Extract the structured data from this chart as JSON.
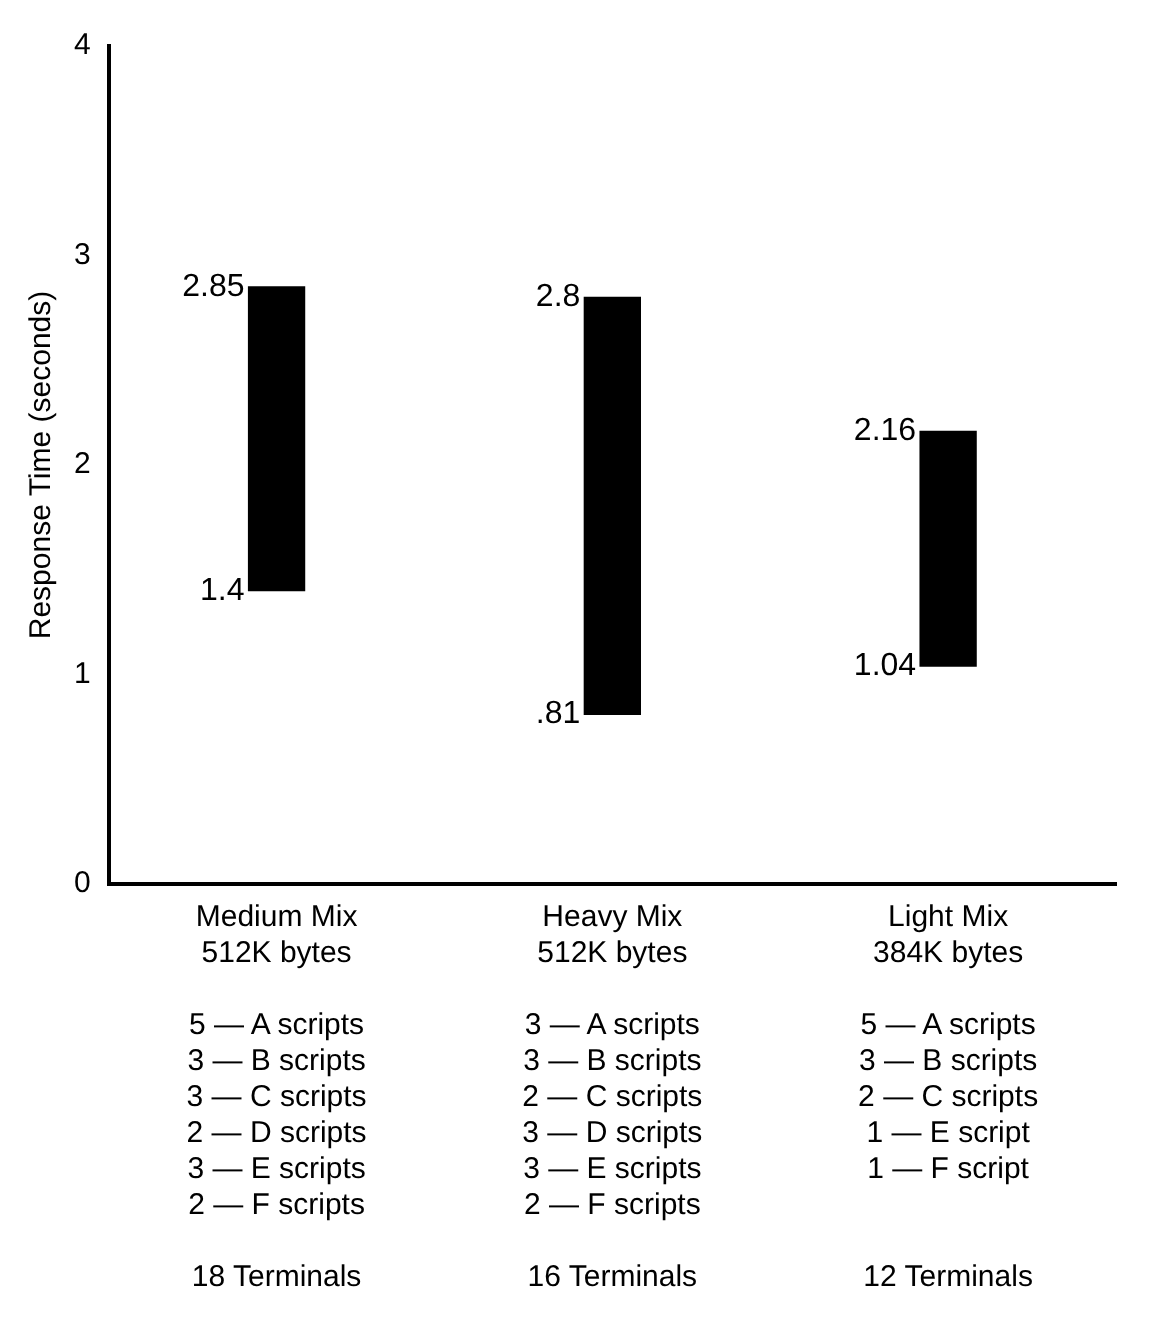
{
  "chart_data": {
    "type": "bar",
    "ylabel": "Response Time (seconds)",
    "categories": [
      "Medium Mix\n512K bytes\n\n5 — A scripts\n3 — B scripts\n3 — C scripts\n2 — D scripts\n3 — E scripts\n2 — F scripts\n\n18 Terminals",
      "Heavy Mix\n512K bytes\n\n3 — A scripts\n3 — B scripts\n2 — C scripts\n3 — D scripts\n3 — E scripts\n2 — F scripts\n\n16 Terminals",
      "Light Mix\n384K bytes\n\n5 — A scripts\n3 — B scripts\n2 — C scripts\n1 — E script\n1 — F script\n\n12 Terminals"
    ],
    "base": [
      1.4,
      0.81,
      1.04
    ],
    "values": [
      1.45,
      1.99,
      1.12
    ],
    "color": "#000000",
    "ylim": [
      0,
      4
    ],
    "yticks": [
      0,
      1,
      2,
      3,
      4
    ],
    "grid": false,
    "annotations": [
      {
        "text": "2.85",
        "x": "Medium Mix\n512K bytes\n\n5 — A scripts\n3 — B scripts\n3 — C scripts\n2 — D scripts\n3 — E scripts\n2 — F scripts\n\n18 Terminals",
        "y": 2.85
      },
      {
        "text": "1.4",
        "x": "Medium Mix\n512K bytes\n\n5 — A scripts\n3 — B scripts\n3 — C scripts\n2 — D scripts\n3 — E scripts\n2 — F scripts\n\n18 Terminals",
        "y": 1.4
      },
      {
        "text": "2.8",
        "x": "Heavy Mix\n512K bytes\n\n3 — A scripts\n3 — B scripts\n2 — C scripts\n3 — D scripts\n3 — E scripts\n2 — F scripts\n\n16 Terminals",
        "y": 2.8
      },
      {
        "text": ".81",
        "x": "Heavy Mix\n512K bytes\n\n3 — A scripts\n3 — B scripts\n2 — C scripts\n3 — D scripts\n3 — E scripts\n2 — F scripts\n\n16 Terminals",
        "y": 0.81
      },
      {
        "text": "2.16",
        "x": "Light Mix\n384K bytes\n\n5 — A scripts\n3 — B scripts\n2 — C scripts\n1 — E script\n1 — F script\n\n12 Terminals",
        "y": 2.16
      },
      {
        "text": "1.04",
        "x": "Light Mix\n384K bytes\n\n5 — A scripts\n3 — B scripts\n2 — C scripts\n1 — E script\n1 — F script\n\n12 Terminals",
        "y": 1.04
      }
    ]
  }
}
